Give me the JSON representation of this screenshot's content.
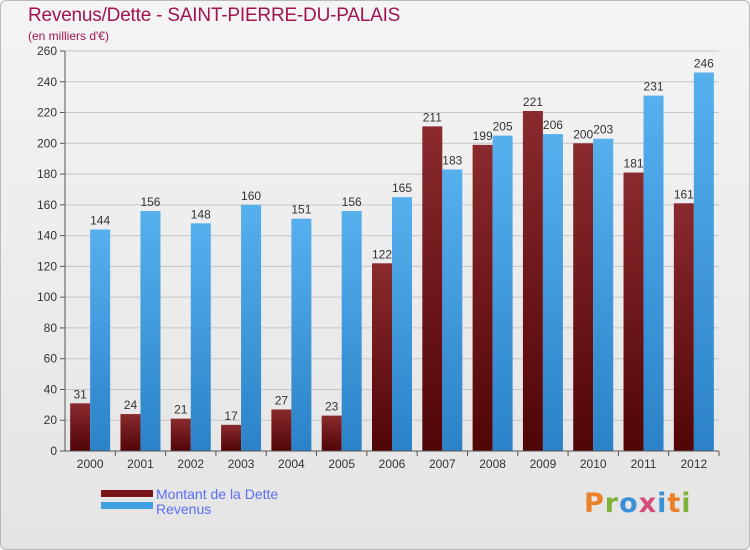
{
  "title": "Revenus/Dette - SAINT-PIERRE-DU-PALAIS",
  "subtitle": "(en milliers d'€)",
  "legend": {
    "dette_label": "Montant de la Dette",
    "revenus_label": "Revenus"
  },
  "logo": {
    "text": "Proxiti",
    "colors": [
      "#e8812a",
      "#7fb239",
      "#3a8fd6",
      "#d64c7a",
      "#3a8fd6",
      "#e8812a",
      "#7fb239"
    ]
  },
  "colors": {
    "dette": "#7a1519",
    "revenus": "#3f9fe2",
    "title": "#a0154f",
    "legend_text": "#5b6df2"
  },
  "chart_data": {
    "type": "bar",
    "categories": [
      "2000",
      "2001",
      "2002",
      "2003",
      "2004",
      "2005",
      "2006",
      "2007",
      "2008",
      "2009",
      "2010",
      "2011",
      "2012"
    ],
    "series": [
      {
        "name": "Montant de la Dette",
        "values": [
          31,
          24,
          21,
          17,
          27,
          23,
          122,
          211,
          199,
          221,
          200,
          181,
          161
        ]
      },
      {
        "name": "Revenus",
        "values": [
          144,
          156,
          148,
          160,
          151,
          156,
          165,
          183,
          205,
          206,
          203,
          231,
          246
        ]
      }
    ],
    "yticks": [
      0,
      20,
      40,
      60,
      80,
      100,
      120,
      140,
      160,
      180,
      200,
      220,
      240,
      260
    ],
    "ylim": [
      0,
      260
    ],
    "grid": true,
    "legend_position": "bottom-left"
  }
}
